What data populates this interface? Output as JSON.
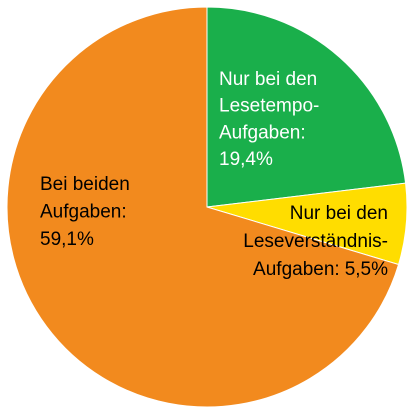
{
  "chart_data": {
    "type": "pie",
    "categories": [
      [
        "Nur bei den",
        "Lesetempo-",
        "Aufgaben:"
      ],
      [
        "Nur bei den",
        "Leseverständnis-",
        "Aufgaben:"
      ],
      [
        "Bei beiden",
        "Aufgaben:"
      ]
    ],
    "values": [
      19.4,
      5.5,
      59.1
    ],
    "value_labels": [
      "19,4%",
      "5,5%",
      "59,1%"
    ],
    "colors": [
      "#1aaf4b",
      "#ffdd00",
      "#f28a1e"
    ]
  }
}
